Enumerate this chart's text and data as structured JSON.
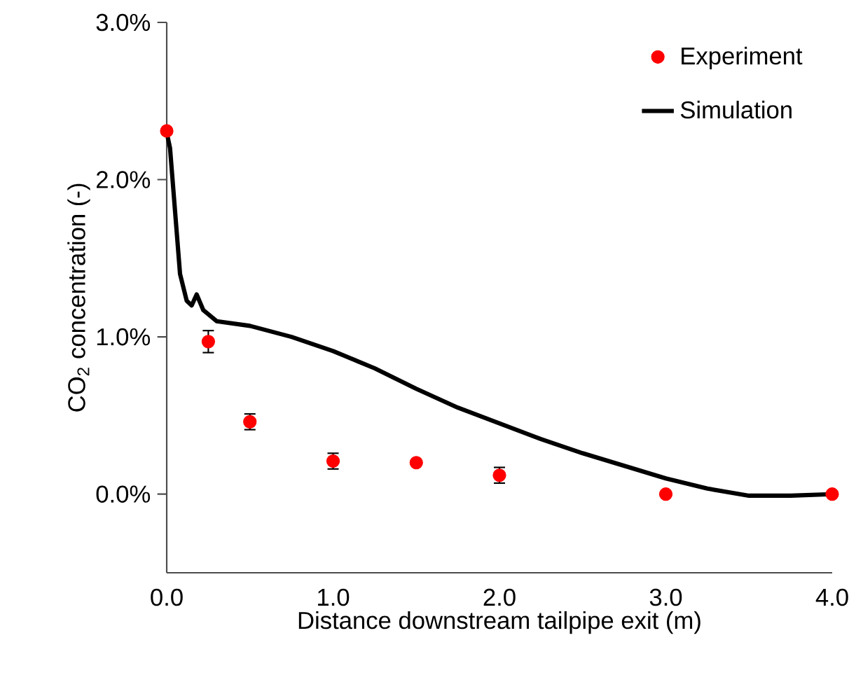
{
  "chart_data": {
    "type": "scatter",
    "xlabel": "Distance downstream tailpipe exit (m)",
    "ylabel": "CO$_{2}$ concentration (-)",
    "xlim": [
      0,
      4
    ],
    "ylim": [
      -0.5,
      3.0
    ],
    "xticks": [
      {
        "value": 0,
        "label": "0.0"
      },
      {
        "value": 1,
        "label": "1.0"
      },
      {
        "value": 2,
        "label": "2.0"
      },
      {
        "value": 3,
        "label": "3.0"
      },
      {
        "value": 4,
        "label": "4.0"
      }
    ],
    "yticks": [
      {
        "value": 0,
        "label": "0.0%"
      },
      {
        "value": 1,
        "label": "1.0%"
      },
      {
        "value": 2,
        "label": "2.0%"
      },
      {
        "value": 3,
        "label": "3.0%"
      }
    ],
    "grid": false,
    "legend": "top right",
    "series": [
      {
        "name": "Experiment",
        "color": "#ff0000",
        "marker": "circle",
        "x": [
          0,
          0.25,
          0.5,
          1.0,
          1.5,
          2.0,
          3.0,
          4.0
        ],
        "values": [
          2.31,
          0.97,
          0.46,
          0.21,
          0.2,
          0.12,
          0.0,
          0.0
        ],
        "errors": [
          null,
          0.07,
          0.05,
          0.05,
          null,
          0.05,
          null,
          null
        ]
      },
      {
        "name": "Simulation",
        "type": "line",
        "color": "#000000",
        "marker": "none",
        "line_style": "solid",
        "x": [
          0,
          0.02,
          0.05,
          0.08,
          0.12,
          0.15,
          0.18,
          0.22,
          0.3,
          0.5,
          0.75,
          1.0,
          1.25,
          1.5,
          1.75,
          2.0,
          2.25,
          2.5,
          2.75,
          3.0,
          3.25,
          3.5,
          3.75,
          4.0
        ],
        "values": [
          2.3,
          2.2,
          1.8,
          1.4,
          1.23,
          1.2,
          1.27,
          1.17,
          1.1,
          1.07,
          1.0,
          0.91,
          0.8,
          0.67,
          0.55,
          0.45,
          0.35,
          0.26,
          0.18,
          0.1,
          0.035,
          -0.01,
          -0.01,
          0.0
        ]
      }
    ]
  }
}
